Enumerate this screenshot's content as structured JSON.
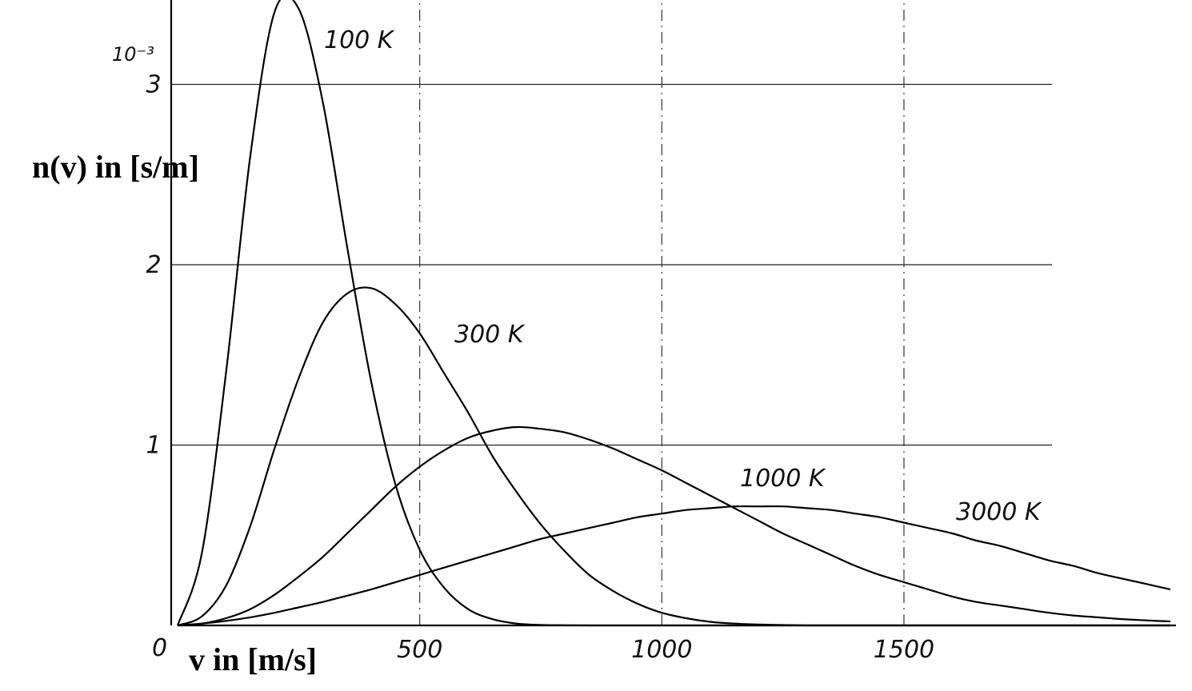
{
  "chart_data": {
    "type": "line",
    "xlabel": "v in [m/s]",
    "ylabel": "n(v) in [s/m]",
    "y_scale_note": "10⁻³",
    "x_origin_label": "0",
    "xlim": [
      0,
      2070
    ],
    "ylim": [
      0,
      3.45
    ],
    "x_ticks": [
      500,
      1000,
      1500
    ],
    "x_tick_labels": [
      "500",
      "1000",
      "1500"
    ],
    "y_ticks": [
      1,
      2,
      3
    ],
    "y_tick_labels": [
      "1",
      "2",
      "3"
    ],
    "grid": true,
    "x_sample": [
      0,
      50,
      100,
      150,
      200,
      250,
      300,
      350,
      400,
      450,
      500,
      550,
      600,
      650,
      700,
      750,
      800,
      850,
      900,
      950,
      1000,
      1050,
      1100,
      1150,
      1200,
      1250,
      1300,
      1350,
      1400,
      1450,
      1500,
      1550,
      1600,
      1650,
      1700,
      1750,
      1800,
      1850,
      1900,
      1950,
      2000,
      2050
    ],
    "series": [
      {
        "name": "100 K",
        "values": [
          0,
          0.4,
          1.4,
          2.6,
          3.4,
          3.42,
          2.9,
          2.1,
          1.35,
          0.78,
          0.42,
          0.21,
          0.09,
          0.035,
          0.01,
          0.003,
          0.001,
          0,
          0,
          0,
          0,
          0,
          0,
          0,
          0,
          0,
          0,
          0,
          0,
          0,
          0,
          0,
          0,
          0,
          0,
          0,
          0,
          0,
          0,
          0,
          0,
          0
        ]
      },
      {
        "name": "300 K",
        "values": [
          0,
          0.05,
          0.22,
          0.55,
          0.98,
          1.37,
          1.68,
          1.84,
          1.87,
          1.78,
          1.62,
          1.4,
          1.18,
          0.94,
          0.74,
          0.56,
          0.41,
          0.28,
          0.19,
          0.12,
          0.07,
          0.04,
          0.02,
          0.01,
          0.005,
          0.002,
          0,
          0,
          0,
          0,
          0,
          0,
          0,
          0,
          0,
          0,
          0,
          0,
          0,
          0,
          0,
          0
        ]
      },
      {
        "name": "1000 K",
        "values": [
          0,
          0.01,
          0.04,
          0.09,
          0.17,
          0.27,
          0.38,
          0.51,
          0.64,
          0.77,
          0.88,
          0.97,
          1.04,
          1.08,
          1.1,
          1.09,
          1.07,
          1.03,
          0.98,
          0.92,
          0.86,
          0.79,
          0.72,
          0.65,
          0.58,
          0.51,
          0.45,
          0.39,
          0.33,
          0.28,
          0.24,
          0.2,
          0.16,
          0.13,
          0.11,
          0.09,
          0.07,
          0.055,
          0.045,
          0.035,
          0.028,
          0.022
        ]
      },
      {
        "name": "3000 K",
        "values": [
          0,
          0.01,
          0.025,
          0.045,
          0.07,
          0.1,
          0.13,
          0.165,
          0.2,
          0.24,
          0.28,
          0.32,
          0.36,
          0.4,
          0.44,
          0.48,
          0.51,
          0.54,
          0.57,
          0.6,
          0.62,
          0.64,
          0.65,
          0.66,
          0.66,
          0.66,
          0.65,
          0.64,
          0.62,
          0.6,
          0.57,
          0.54,
          0.51,
          0.47,
          0.44,
          0.4,
          0.36,
          0.33,
          0.29,
          0.26,
          0.23,
          0.2
        ]
      }
    ]
  }
}
